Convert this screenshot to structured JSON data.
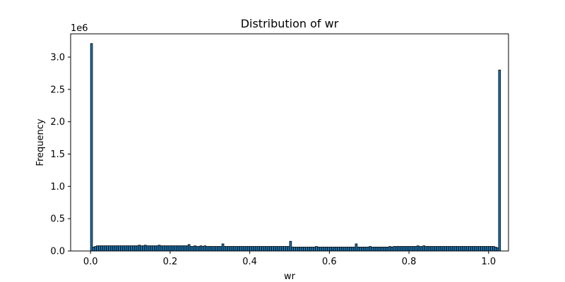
{
  "chart_data": {
    "type": "bar",
    "title": "Distribution of wr",
    "xlabel": "wr",
    "ylabel": "Frequency",
    "y_offset_label": "1e6",
    "xlim": [
      -0.05,
      1.05
    ],
    "ylim": [
      0,
      3.36
    ],
    "y_unit_multiplier": 1000000,
    "x_ticks": [
      0.0,
      0.2,
      0.4,
      0.6,
      0.8,
      1.0
    ],
    "x_tick_labels": [
      "0.0",
      "0.2",
      "0.4",
      "0.6",
      "0.8",
      "1.0"
    ],
    "y_ticks": [
      0.0,
      0.5,
      1.0,
      1.5,
      2.0,
      2.5,
      3.0
    ],
    "y_tick_labels": [
      "0.0",
      "0.5",
      "1.0",
      "1.5",
      "2.0",
      "2.5",
      "3.0"
    ],
    "bin_start": 0.0,
    "bin_width": 0.005,
    "values": [
      3.21,
      0.06,
      0.07,
      0.08,
      0.08,
      0.08,
      0.08,
      0.08,
      0.08,
      0.08,
      0.08,
      0.08,
      0.08,
      0.08,
      0.08,
      0.08,
      0.08,
      0.08,
      0.08,
      0.08,
      0.08,
      0.08,
      0.08,
      0.08,
      0.09,
      0.08,
      0.08,
      0.09,
      0.08,
      0.08,
      0.08,
      0.08,
      0.08,
      0.08,
      0.09,
      0.08,
      0.08,
      0.08,
      0.08,
      0.08,
      0.08,
      0.08,
      0.08,
      0.08,
      0.08,
      0.08,
      0.08,
      0.08,
      0.08,
      0.1,
      0.07,
      0.07,
      0.08,
      0.07,
      0.07,
      0.08,
      0.07,
      0.08,
      0.07,
      0.07,
      0.07,
      0.07,
      0.07,
      0.07,
      0.07,
      0.07,
      0.11,
      0.07,
      0.07,
      0.07,
      0.07,
      0.07,
      0.07,
      0.07,
      0.07,
      0.07,
      0.07,
      0.07,
      0.07,
      0.07,
      0.07,
      0.07,
      0.07,
      0.07,
      0.07,
      0.07,
      0.07,
      0.07,
      0.07,
      0.07,
      0.07,
      0.07,
      0.07,
      0.07,
      0.07,
      0.07,
      0.07,
      0.07,
      0.07,
      0.07,
      0.15,
      0.06,
      0.06,
      0.06,
      0.06,
      0.06,
      0.06,
      0.06,
      0.06,
      0.06,
      0.06,
      0.06,
      0.06,
      0.07,
      0.06,
      0.06,
      0.06,
      0.06,
      0.06,
      0.06,
      0.06,
      0.06,
      0.06,
      0.06,
      0.06,
      0.06,
      0.06,
      0.06,
      0.06,
      0.06,
      0.06,
      0.06,
      0.06,
      0.11,
      0.06,
      0.06,
      0.06,
      0.06,
      0.06,
      0.06,
      0.07,
      0.06,
      0.06,
      0.06,
      0.06,
      0.06,
      0.06,
      0.06,
      0.06,
      0.06,
      0.07,
      0.06,
      0.07,
      0.07,
      0.07,
      0.07,
      0.07,
      0.07,
      0.07,
      0.07,
      0.07,
      0.07,
      0.07,
      0.07,
      0.08,
      0.07,
      0.07,
      0.08,
      0.07,
      0.07,
      0.07,
      0.07,
      0.07,
      0.07,
      0.07,
      0.07,
      0.07,
      0.07,
      0.07,
      0.07,
      0.07,
      0.07,
      0.07,
      0.07,
      0.07,
      0.07,
      0.07,
      0.07,
      0.07,
      0.07,
      0.07,
      0.07,
      0.07,
      0.07,
      0.07,
      0.07,
      0.07,
      0.07,
      0.07,
      0.07,
      0.07,
      0.07,
      0.07,
      0.06,
      0.05,
      2.8
    ]
  }
}
